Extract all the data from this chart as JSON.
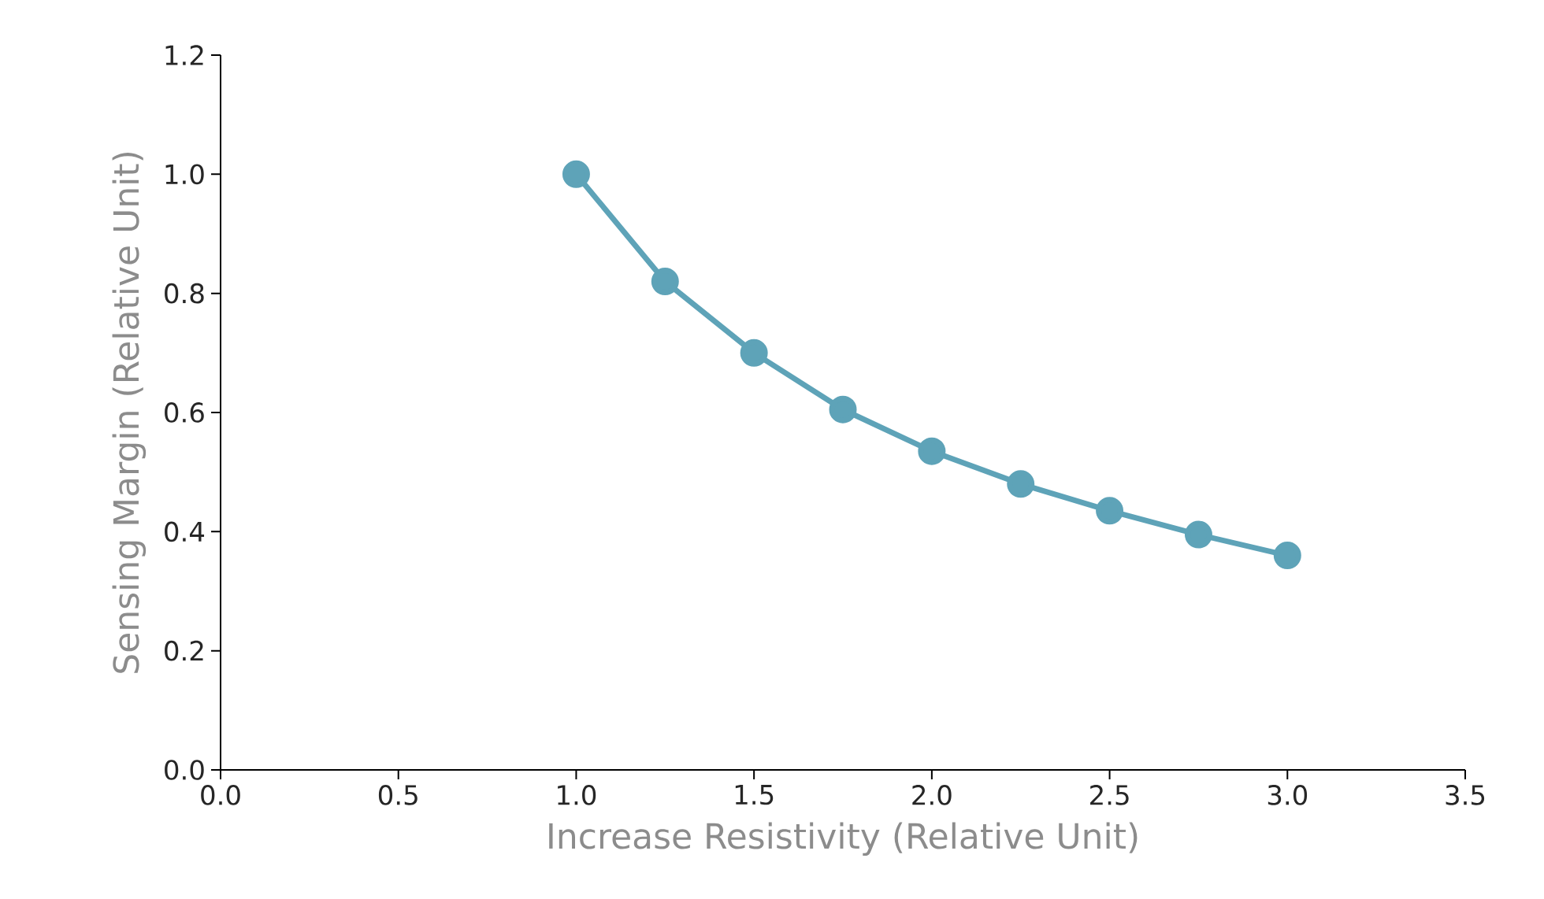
{
  "chart_data": {
    "type": "line",
    "xlabel": "Increase Resistivity (Relative Unit)",
    "ylabel": "Sensing Margin (Relative Unit)",
    "x": [
      1.0,
      1.25,
      1.5,
      1.75,
      2.0,
      2.25,
      2.5,
      2.75,
      3.0
    ],
    "series": [
      {
        "color": "#5ea3b8",
        "values": [
          1.0,
          0.82,
          0.7,
          0.605,
          0.535,
          0.48,
          0.435,
          0.395,
          0.36
        ]
      }
    ],
    "xlim": [
      0,
      3.5
    ],
    "ylim": [
      0,
      1.2
    ],
    "xticks": [
      {
        "value": 0,
        "label": "0.0"
      },
      {
        "value": 0.5,
        "label": "0.5"
      },
      {
        "value": 1,
        "label": "1.0"
      },
      {
        "value": 1.5,
        "label": "1.5"
      },
      {
        "value": 2,
        "label": "2.0"
      },
      {
        "value": 2.5,
        "label": "2.5"
      },
      {
        "value": 3,
        "label": "3.0"
      },
      {
        "value": 3.5,
        "label": "3.5"
      }
    ],
    "yticks": [
      {
        "value": 0,
        "label": "0.0"
      },
      {
        "value": 0.2,
        "label": "0.2"
      },
      {
        "value": 0.4,
        "label": "0.4"
      },
      {
        "value": 0.6,
        "label": "0.6"
      },
      {
        "value": 0.8,
        "label": "0.8"
      },
      {
        "value": 1,
        "label": "1.0"
      },
      {
        "value": 1.2,
        "label": "1.2"
      }
    ],
    "marker": "circle",
    "line_style": "solid"
  }
}
